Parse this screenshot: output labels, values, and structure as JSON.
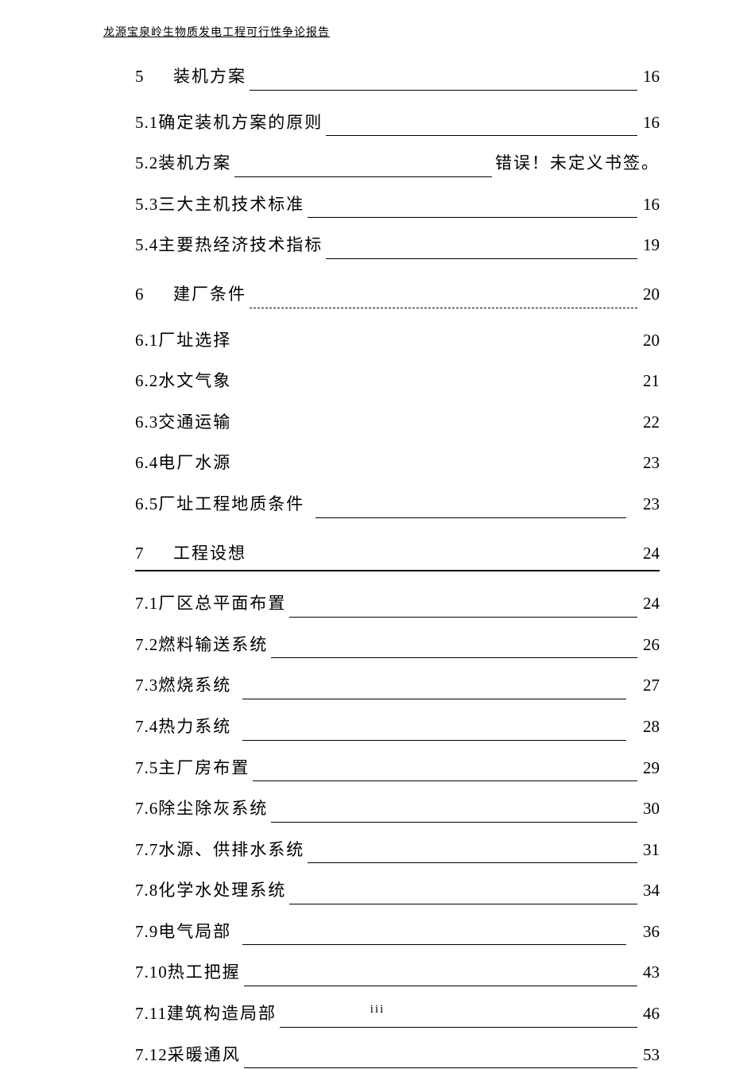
{
  "header": "龙源宝泉岭生物质发电工程可行性争论报告",
  "footer": "iii",
  "rows": [
    {
      "num": "5",
      "title": "装机方案",
      "page": "16",
      "type": "chapter",
      "leader": "solid",
      "extraClass": "first-head"
    },
    {
      "num": "5.1",
      "title": "确定装机方案的原则",
      "page": "16",
      "type": "sub",
      "leader": "solid"
    },
    {
      "num": "5.2",
      "title": "装机方案",
      "page": "错误！未定义书签。",
      "type": "sub-error",
      "leader": "solid"
    },
    {
      "num": "5.3",
      "title": "三大主机技术标准",
      "page": "16",
      "type": "sub",
      "leader": "solid"
    },
    {
      "num": "5.4",
      "title": "主要热经济技术指标",
      "page": "19",
      "type": "sub",
      "leader": "solid"
    },
    {
      "num": "6",
      "title": "建厂条件",
      "page": "20",
      "type": "chapter",
      "leader": "dashed"
    },
    {
      "num": "6.1",
      "title": "厂址选择",
      "page": "20",
      "type": "sub",
      "leader": "none"
    },
    {
      "num": "6.2",
      "title": "水文气象",
      "page": "21",
      "type": "sub",
      "leader": "none"
    },
    {
      "num": "6.3",
      "title": "交通运输",
      "page": "22",
      "type": "sub",
      "leader": "none"
    },
    {
      "num": "6.4",
      "title": "电厂水源",
      "page": "23",
      "type": "sub",
      "leader": "none"
    },
    {
      "num": "6.5",
      "title": "厂址工程地质条件",
      "page": "23",
      "type": "sub",
      "leader": "solid",
      "gap": true
    },
    {
      "num": "7",
      "title": "工程设想",
      "page": "24",
      "type": "chapter",
      "leader": "thick-under"
    },
    {
      "num": "7.1",
      "title": "厂区总平面布置",
      "page": "24",
      "type": "sub",
      "leader": "solid"
    },
    {
      "num": "7.2",
      "title": " 燃料输送系统",
      "page": "26",
      "type": "sub",
      "leader": "solid"
    },
    {
      "num": "7.3",
      "title": "燃烧系统",
      "page": "27",
      "type": "sub",
      "leader": "solid",
      "gap": true
    },
    {
      "num": "7.4",
      "title": "热力系统",
      "page": "28",
      "type": "sub",
      "leader": "solid",
      "gap": true
    },
    {
      "num": "7.5",
      "title": "主厂房布置",
      "page": "29",
      "type": "sub",
      "leader": "solid"
    },
    {
      "num": "7.6",
      "title": "除尘除灰系统",
      "page": "30",
      "type": "sub",
      "leader": "solid"
    },
    {
      "num": "7.7",
      "title": "水源、供排水系统",
      "page": "31",
      "type": "sub",
      "leader": "solid"
    },
    {
      "num": "7.8",
      "title": "化学水处理系统",
      "page": "34",
      "type": "sub",
      "leader": "solid"
    },
    {
      "num": "7.9",
      "title": "电气局部",
      "page": "36",
      "type": "sub",
      "leader": "solid",
      "gap": true
    },
    {
      "num": "7.10",
      "title": " 热工把握",
      "page": "43",
      "type": "sub",
      "leader": "solid"
    },
    {
      "num": "7.11",
      "title": "建筑构造局部",
      "page": "46",
      "type": "sub",
      "leader": "solid"
    },
    {
      "num": "7.12",
      "title": "采暖通风",
      "page": "53",
      "type": "sub",
      "leader": "solid"
    }
  ]
}
